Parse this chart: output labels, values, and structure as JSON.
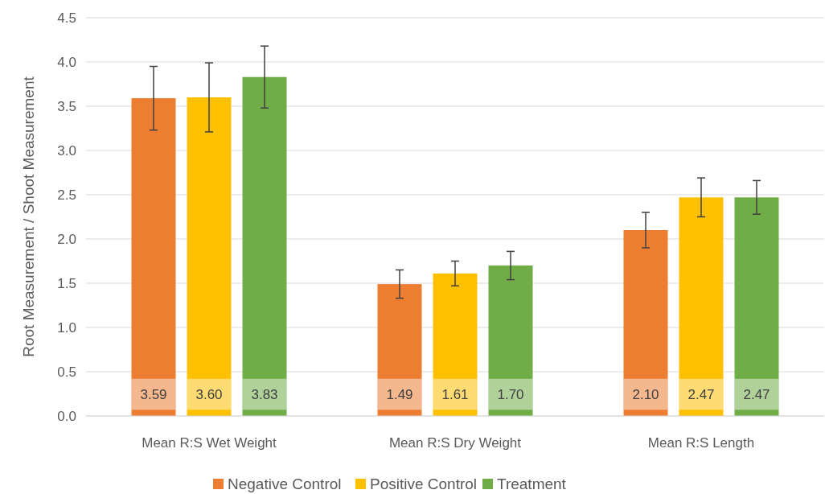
{
  "chart_data": {
    "type": "bar",
    "ylabel": "Root Measurement / Shoot Measurement",
    "categories": [
      "Mean R:S Wet Weight",
      "Mean R:S Dry Weight",
      "Mean R:S Length"
    ],
    "series": [
      {
        "name": "Negative Control",
        "color": "#ed7d31",
        "values": [
          3.59,
          1.49,
          2.1
        ],
        "value_labels": [
          "3.59",
          "1.49",
          "2.10"
        ],
        "errors": [
          0.36,
          0.16,
          0.2
        ]
      },
      {
        "name": "Positive Control",
        "color": "#ffc000",
        "values": [
          3.6,
          1.61,
          2.47
        ],
        "value_labels": [
          "3.60",
          "1.61",
          "2.47"
        ],
        "errors": [
          0.39,
          0.14,
          0.22
        ]
      },
      {
        "name": "Treatment",
        "color": "#70ad47",
        "values": [
          3.83,
          1.7,
          2.47
        ],
        "value_labels": [
          "3.83",
          "1.70",
          "2.47"
        ],
        "errors": [
          0.35,
          0.16,
          0.19
        ]
      }
    ],
    "ylim": [
      0,
      4.5
    ],
    "yticks": [
      {
        "value": 0,
        "label": "0.0"
      },
      {
        "value": 0.5,
        "label": "0.5"
      },
      {
        "value": 1,
        "label": "1.0"
      },
      {
        "value": 1.5,
        "label": "1.5"
      },
      {
        "value": 2,
        "label": "2.0"
      },
      {
        "value": 2.5,
        "label": "2.5"
      },
      {
        "value": 3,
        "label": "3.0"
      },
      {
        "value": 3.5,
        "label": "3.5"
      },
      {
        "value": 4,
        "label": "4.0"
      },
      {
        "value": 4.5,
        "label": "4.5"
      }
    ],
    "grid": "y",
    "legend": "bottom"
  }
}
